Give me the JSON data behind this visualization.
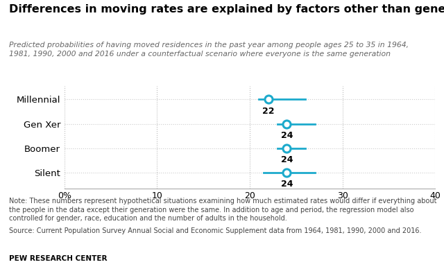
{
  "title": "Differences in moving rates are explained by factors other than generation",
  "subtitle": "Predicted probabilities of having moved residences in the past year among people ages 25 to 35 in 1964,\n1981, 1990, 2000 and 2016 under a counterfactual scenario where everyone is the same generation",
  "categories": [
    "Millennial",
    "Gen Xer",
    "Boomer",
    "Silent"
  ],
  "centers": [
    22,
    24,
    24,
    24
  ],
  "ci_low": [
    21,
    23,
    23,
    21.5
  ],
  "ci_high": [
    26,
    27,
    26,
    27
  ],
  "labels": [
    "22",
    "24",
    "24",
    "24"
  ],
  "xlim": [
    0,
    40
  ],
  "xticks": [
    0,
    10,
    20,
    30,
    40
  ],
  "xticklabels": [
    "0%",
    "10",
    "20",
    "30",
    "40"
  ],
  "dot_color": "#1CAACC",
  "dot_facecolor": "white",
  "line_color": "#1CAACC",
  "bg_color": "#FFFFFF",
  "note1": "Note: These numbers represent hypothetical situations examining how much estimated rates would differ if everything about the people in the data except their generation were the same. In addition to age and period, the regression model also controlled for gender, race, education and the number of adults in the household.",
  "note2": "Source: Current Population Survey Annual Social and Economic Supplement data from 1964, 1981, 1990, 2000 and 2016.",
  "source_label": "PEW RESEARCH CENTER"
}
